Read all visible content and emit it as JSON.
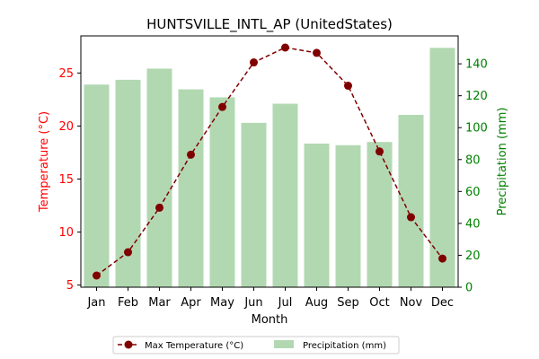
{
  "chart_data": {
    "type": "bar+line",
    "title": "HUNTSVILLE_INTL_AP (UnitedStates)",
    "xlabel": "Month",
    "ylabel_left": "Temperature (°C)",
    "ylabel_right": "Precipitation (mm)",
    "categories": [
      "Jan",
      "Feb",
      "Mar",
      "Apr",
      "May",
      "Jun",
      "Jul",
      "Aug",
      "Sep",
      "Oct",
      "Nov",
      "Dec"
    ],
    "series": [
      {
        "name": "Max Temperature (°C)",
        "kind": "line",
        "axis": "left",
        "color": "#800000",
        "values": [
          5.9,
          8.1,
          12.3,
          17.3,
          21.8,
          26.0,
          27.4,
          26.9,
          23.8,
          17.6,
          11.4,
          7.5
        ]
      },
      {
        "name": "Precipitation (mm)",
        "kind": "bar",
        "axis": "right",
        "color": "#b2d8b2",
        "values": [
          127,
          130,
          137,
          124,
          119,
          103,
          115,
          90,
          89,
          91,
          108,
          150
        ]
      }
    ],
    "y_left_range": [
      4.8,
      28.5
    ],
    "y_left_ticks": [
      5,
      10,
      15,
      20,
      25
    ],
    "y_right_range": [
      0,
      157.5
    ],
    "y_right_ticks": [
      0,
      20,
      40,
      60,
      80,
      100,
      120,
      140
    ],
    "left_axis_color": "#ff0000",
    "right_axis_color": "#008000",
    "grid": false,
    "legend_position": "bottom-center"
  }
}
